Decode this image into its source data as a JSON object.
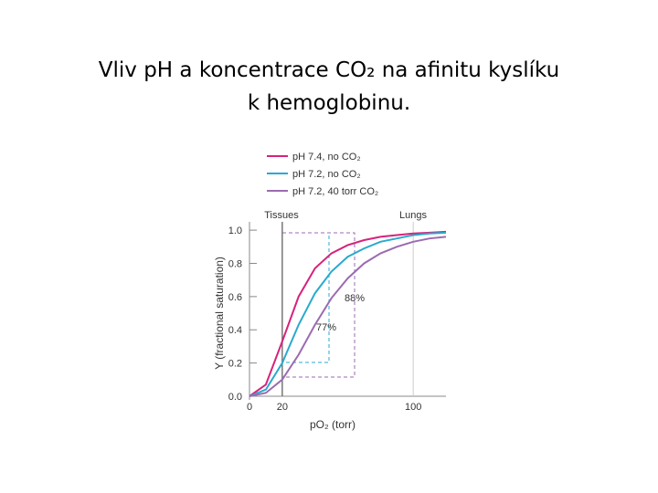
{
  "chart_data": {
    "type": "line",
    "title_lines": [
      "Vliv pH a koncentrace CO₂ na afinitu kyslíku",
      "k hemoglobinu."
    ],
    "x_label": "pO₂ (torr)",
    "y_label": "Y (fractional saturation)",
    "annotations": [
      "Tissues",
      "Lungs",
      "88%",
      "77%"
    ],
    "x": [
      0,
      10,
      20,
      30,
      40,
      50,
      60,
      70,
      80,
      90,
      100,
      110,
      120
    ],
    "series": [
      {
        "name": "pH 7.4, no CO₂",
        "color": "#d6237a",
        "values": [
          0,
          0.07,
          0.33,
          0.6,
          0.77,
          0.86,
          0.91,
          0.94,
          0.96,
          0.97,
          0.98,
          0.985,
          0.99
        ]
      },
      {
        "name": "pH 7.2, no CO₂",
        "color": "#29a9cf",
        "values": [
          0,
          0.04,
          0.2,
          0.43,
          0.62,
          0.75,
          0.84,
          0.89,
          0.93,
          0.95,
          0.97,
          0.98,
          0.985
        ]
      },
      {
        "name": "pH 7.2, 40 torr CO₂",
        "color": "#9b6bb0",
        "values": [
          0,
          0.02,
          0.1,
          0.25,
          0.43,
          0.59,
          0.71,
          0.8,
          0.86,
          0.9,
          0.93,
          0.95,
          0.96
        ]
      }
    ],
    "xlim": [
      0,
      120
    ],
    "xticks": [
      0,
      20,
      100
    ],
    "ylim": [
      0,
      1.05
    ],
    "yticks": [
      {
        "value": 0,
        "label": "0.0"
      },
      0.2,
      0.4,
      0.6,
      0.8,
      {
        "value": 1,
        "label": "1.0"
      }
    ]
  }
}
